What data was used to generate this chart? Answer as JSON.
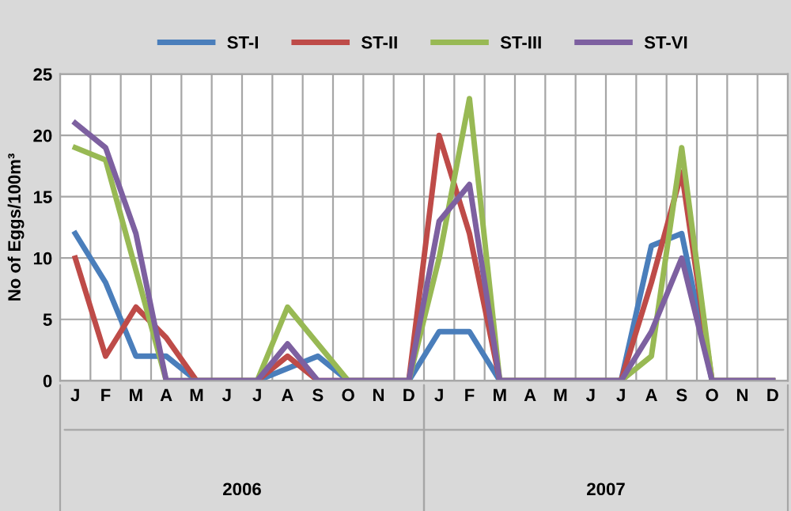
{
  "chart_data": {
    "type": "line",
    "ylabel": "No of Eggs/100m³",
    "categories": [
      "J",
      "F",
      "M",
      "A",
      "M",
      "J",
      "J",
      "A",
      "S",
      "O",
      "N",
      "D",
      "J",
      "F",
      "M",
      "A",
      "M",
      "J",
      "J",
      "A",
      "S",
      "O",
      "N",
      "D"
    ],
    "series": [
      {
        "name": "ST-I",
        "color": "#4a7ebb",
        "values": [
          12,
          8,
          2,
          2,
          0,
          0,
          0,
          1,
          2,
          0,
          0,
          0,
          4,
          4,
          0,
          0,
          0,
          0,
          0,
          11,
          12,
          0,
          0,
          0
        ]
      },
      {
        "name": "ST-II",
        "color": "#be4b48",
        "values": [
          10,
          2,
          6,
          3.5,
          0,
          0,
          0,
          2,
          0,
          0,
          0,
          0,
          20,
          12,
          0,
          0,
          0,
          0,
          0,
          8,
          17,
          0,
          0,
          0
        ]
      },
      {
        "name": "ST-III",
        "color": "#98b954",
        "values": [
          19,
          18,
          9,
          0,
          0,
          0,
          0,
          6,
          3,
          0,
          0,
          0,
          10,
          23,
          0,
          0,
          0,
          0,
          0,
          2,
          19,
          0,
          0,
          0
        ]
      },
      {
        "name": "ST-VI",
        "color": "#7d60a0",
        "values": [
          21,
          19,
          12,
          0,
          0,
          0,
          0,
          3,
          0,
          0,
          0,
          0,
          13,
          16,
          0,
          0,
          0,
          0,
          0,
          4,
          10,
          0,
          0,
          0
        ]
      }
    ],
    "annotations": [
      "2006",
      "2007"
    ],
    "ylim": [
      0,
      25
    ],
    "yticks": [
      0,
      5,
      10,
      15,
      20,
      25
    ],
    "grid": true,
    "legend": "top",
    "line_style": "solid",
    "marker": "none"
  }
}
